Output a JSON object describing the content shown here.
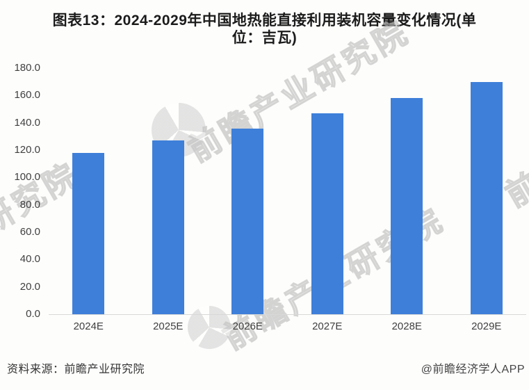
{
  "title_lines": [
    "图表13：2024-2029年中国地热能直接利用装机容量变化情况(单",
    "位：吉瓦)"
  ],
  "footer": {
    "source": "资料来源：前瞻产业研究院",
    "credit": "@前瞻经济学人APP"
  },
  "watermark": {
    "text": "前瞻产业研究院",
    "logo": "pie-globe-logo"
  },
  "colors": {
    "bar": "#3e7fd9",
    "axis_line": "#d8d8d8",
    "tick_text": "#3f3f3f",
    "title_text": "#1b1b1b",
    "watermark": "#b8b8b8"
  },
  "chart_data": {
    "type": "bar",
    "title": "图表13：2024-2029年中国地热能直接利用装机容量变化情况(单位：吉瓦)",
    "categories": [
      "2024E",
      "2025E",
      "2026E",
      "2027E",
      "2028E",
      "2029E"
    ],
    "values": [
      118,
      127,
      136,
      147,
      158,
      170
    ],
    "xlabel": "",
    "ylabel": "",
    "unit": "吉瓦",
    "ylim": [
      0,
      180
    ],
    "ytick_step": 20,
    "yticks": [
      "180.0",
      "160.0",
      "140.0",
      "120.0",
      "100.0",
      "80.0",
      "60.0",
      "40.0",
      "20.0",
      "0.0"
    ],
    "grid": false,
    "legend_position": "none",
    "bar_color": "#3e7fd9"
  }
}
